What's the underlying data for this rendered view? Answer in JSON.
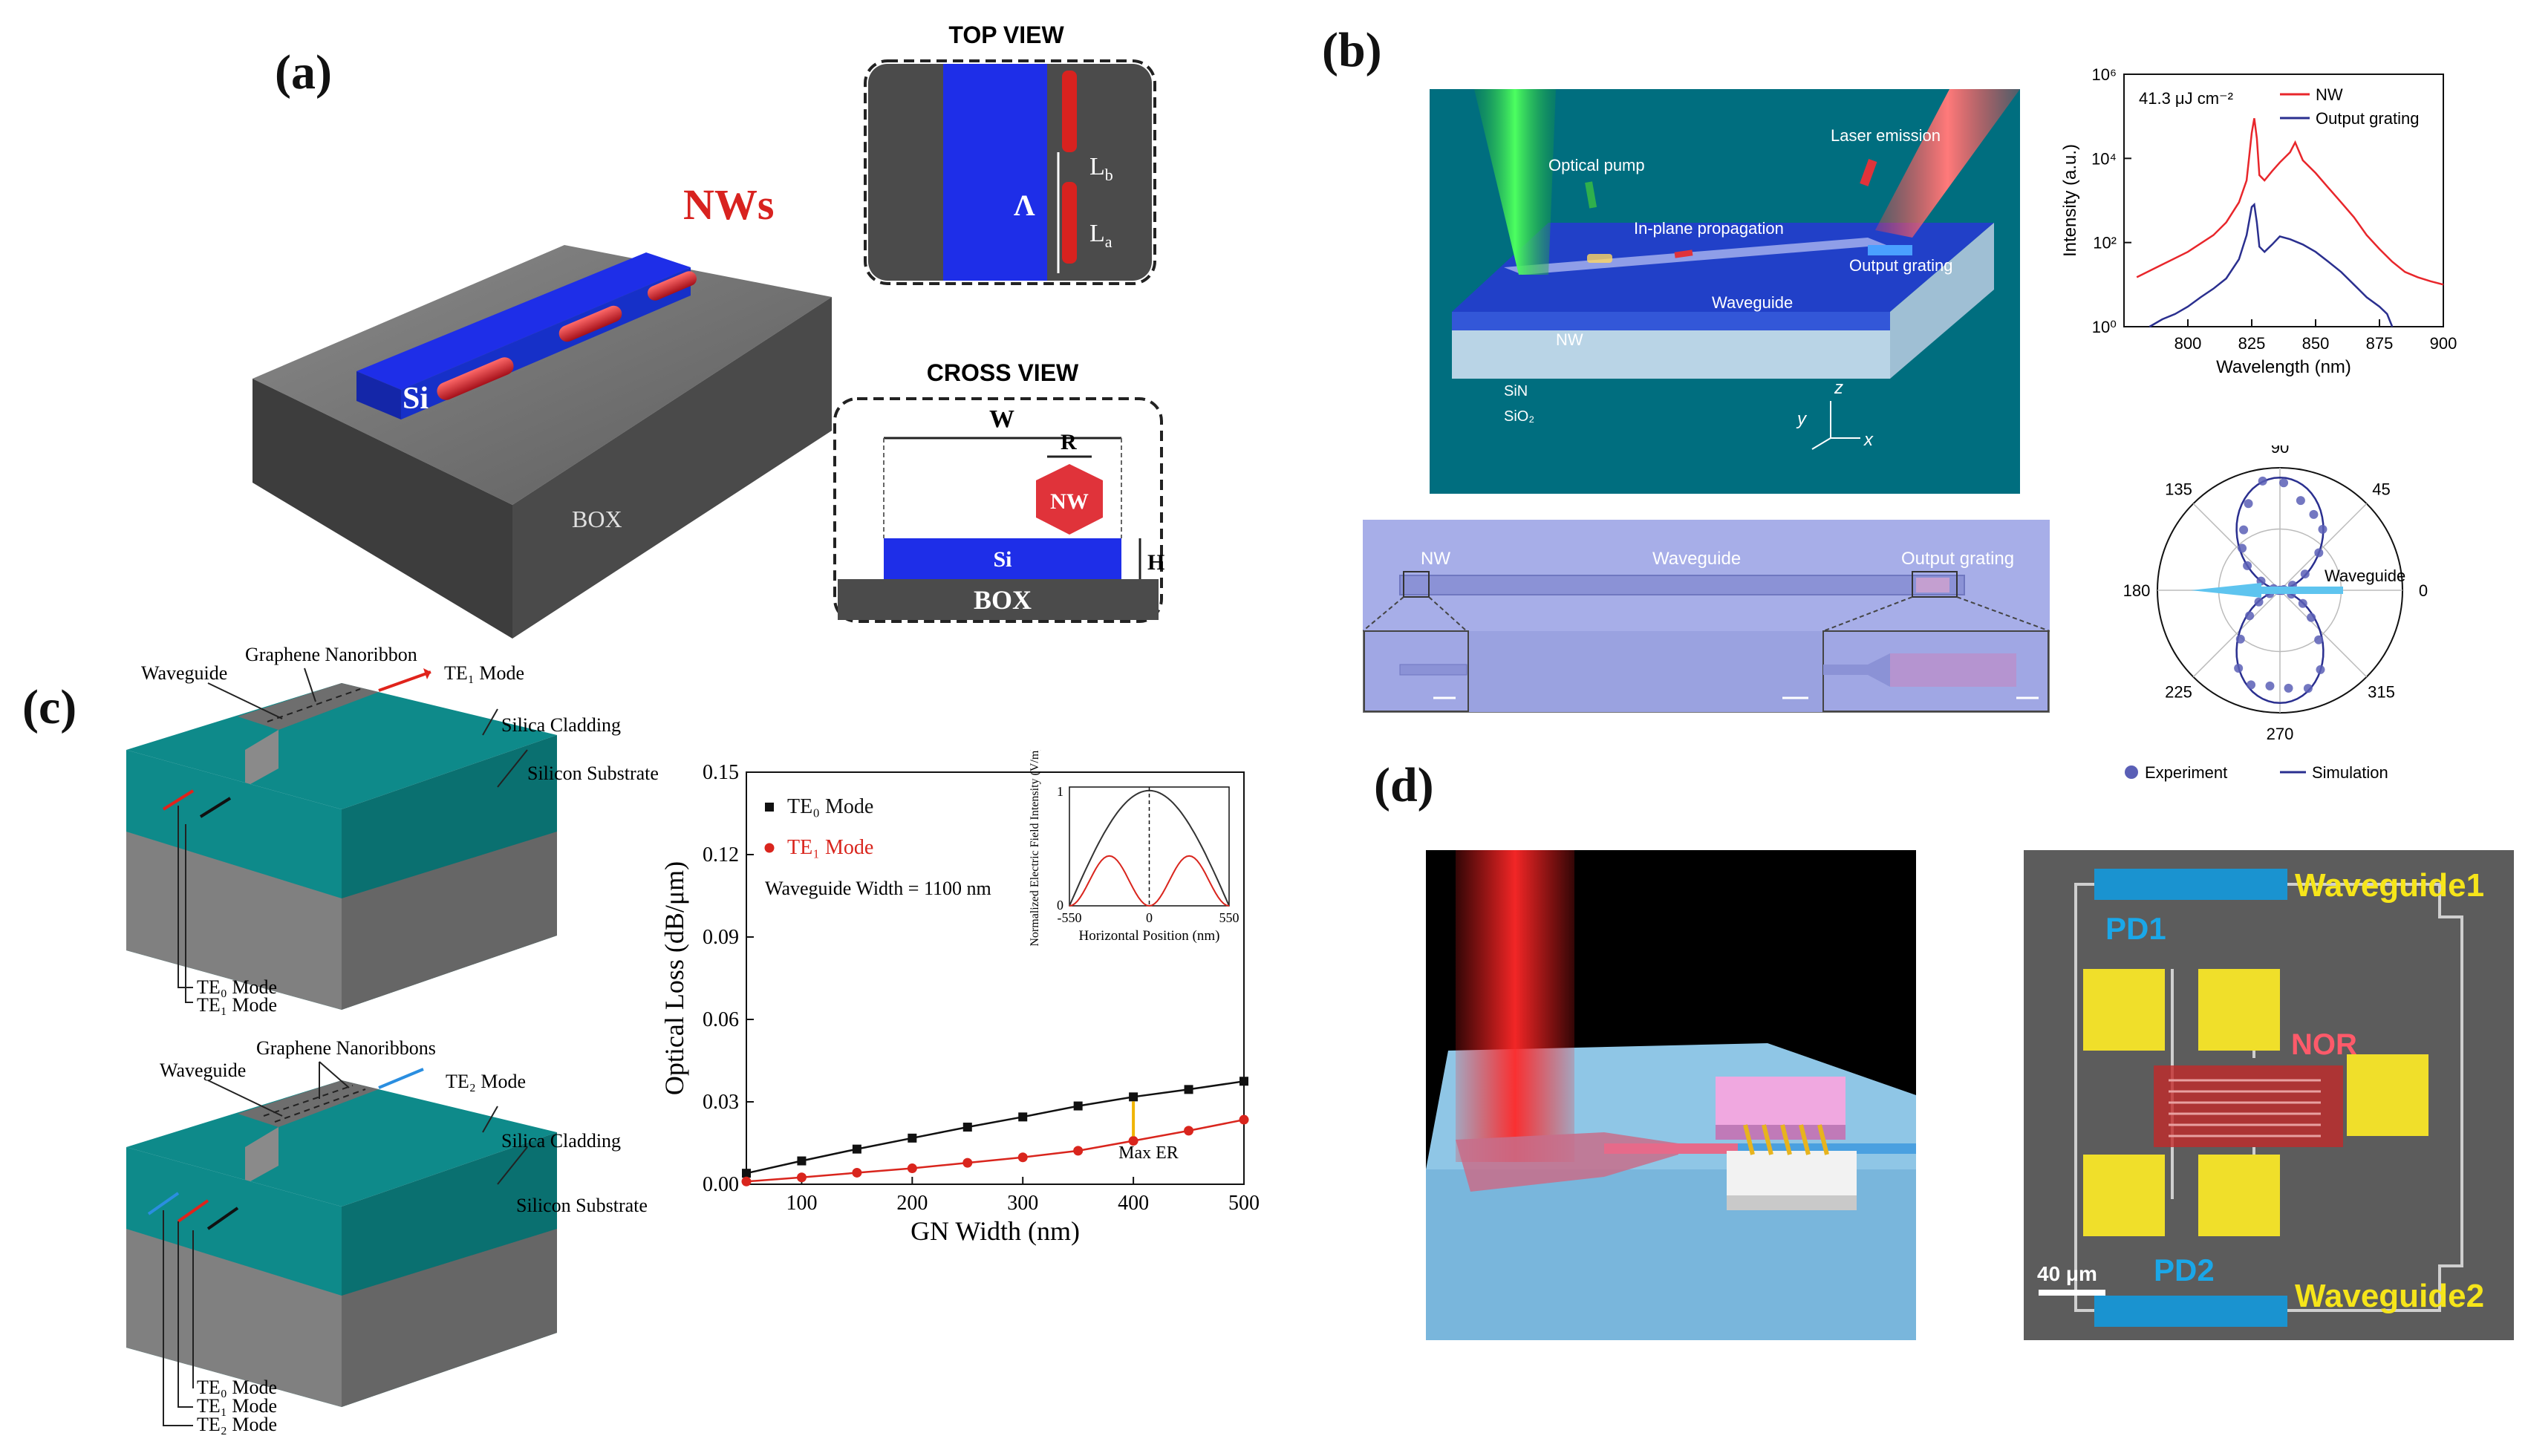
{
  "panels": {
    "a": {
      "label": "(a)",
      "nws_label": "NWs",
      "si_label": "Si",
      "box_label": "BOX",
      "top_view": {
        "title": "TOP VIEW",
        "lambda": "Λ",
        "lb": "L_b",
        "la": "L_a"
      },
      "cross_view": {
        "title": "CROSS VIEW",
        "w": "W",
        "r": "R",
        "nw": "NW",
        "si": "Si",
        "h": "H",
        "box": "BOX"
      }
    },
    "b": {
      "label": "(b)",
      "scene": {
        "optical_pump": "Optical pump",
        "laser_emission": "Laser emission",
        "in_plane": "In-plane propagation",
        "output_grating": "Output grating",
        "waveguide": "Waveguide",
        "nw": "NW",
        "sin": "SiN",
        "sio2": "SiO₂",
        "axis_z": "z",
        "axis_y": "y",
        "axis_x": "x"
      },
      "micrograph": {
        "nw": "NW",
        "waveguide": "Waveguide",
        "output_grating": "Output grating"
      },
      "polar": {
        "angles": [
          "90",
          "45",
          "0",
          "315",
          "270",
          "225",
          "180",
          "135"
        ],
        "waveguide": "Waveguide",
        "legend_experiment": "Experiment",
        "legend_simulation": "Simulation"
      }
    },
    "c": {
      "label": "(c)",
      "top": {
        "waveguide": "Waveguide",
        "nanoribbon": "Graphene Nanoribbon",
        "te1_out": "TE₁ Mode",
        "cladding": "Silica Cladding",
        "substrate": "Silicon Substrate",
        "te0_in": "TE₀ Mode",
        "te1_in": "TE₁ Mode"
      },
      "bottom": {
        "waveguide": "Waveguide",
        "nanoribbons": "Graphene Nanoribbons",
        "te2_out": "TE₂ Mode",
        "cladding": "Silica Cladding",
        "substrate": "Silicon Substrate",
        "te0_in": "TE₀ Mode",
        "te1_in": "TE₁ Mode",
        "te2_in": "TE₂ Mode"
      }
    },
    "d": {
      "label": "(d)",
      "sem": {
        "waveguide1": "Waveguide1",
        "waveguide2": "Waveguide2",
        "pd1": "PD1",
        "pd2": "PD2",
        "nor": "NOR",
        "scale": "40 μm"
      }
    }
  },
  "chart_data": [
    {
      "type": "line",
      "id": "spectrum",
      "annotation": "41.3 μJ cm⁻²",
      "xlabel": "Wavelength (nm)",
      "ylabel": "Intensity (a.u.)",
      "xlim": [
        775,
        900
      ],
      "xticks": [
        "800",
        "825",
        "850",
        "875",
        "900"
      ],
      "yscale": "log",
      "ylim": [
        1,
        1000000
      ],
      "yticks": [
        "10⁰",
        "10²",
        "10⁴",
        "10⁶"
      ],
      "legend_position": "top-right",
      "series": [
        {
          "name": "NW",
          "color": "#e8262b",
          "x": [
            780,
            790,
            800,
            810,
            815,
            820,
            823,
            825,
            826,
            827,
            828,
            830,
            833,
            836,
            840,
            842,
            845,
            850,
            855,
            860,
            865,
            870,
            875,
            880,
            885,
            890,
            895,
            900
          ],
          "y": [
            15,
            30,
            60,
            150,
            300,
            900,
            3000,
            40000,
            90000,
            30000,
            4000,
            3000,
            5000,
            8000,
            14000,
            24000,
            9000,
            4500,
            2000,
            900,
            400,
            150,
            70,
            35,
            20,
            15,
            12,
            10
          ]
        },
        {
          "name": "Output grating",
          "color": "#2a2f8f",
          "x": [
            785,
            790,
            795,
            800,
            805,
            810,
            815,
            820,
            823,
            825,
            826,
            827,
            828,
            830,
            833,
            836,
            840,
            845,
            850,
            855,
            860,
            865,
            870,
            875,
            878,
            880
          ],
          "y": [
            1,
            1.5,
            2,
            3,
            5,
            8,
            14,
            40,
            150,
            700,
            800,
            300,
            80,
            60,
            90,
            140,
            120,
            90,
            60,
            35,
            20,
            10,
            5,
            3,
            2,
            1
          ]
        }
      ]
    },
    {
      "type": "polar",
      "id": "polarization",
      "angle_labels": [
        "0",
        "45",
        "90",
        "135",
        "180",
        "225",
        "270",
        "315"
      ],
      "series": [
        {
          "name": "Experiment",
          "style": "points",
          "color": "#5a5fb6"
        },
        {
          "name": "Simulation",
          "style": "line",
          "color": "#2a2f8f"
        }
      ]
    },
    {
      "type": "line",
      "id": "optical-loss",
      "xlabel": "GN Width (nm)",
      "ylabel": "Optical Loss (dB/μm)",
      "xlim": [
        50,
        500
      ],
      "xticks": [
        "100",
        "200",
        "300",
        "400",
        "500"
      ],
      "ylim": [
        0,
        0.15
      ],
      "yticks": [
        "0.00",
        "0.03",
        "0.06",
        "0.09",
        "0.12",
        "0.15"
      ],
      "annotation_text": "Waveguide Width = 1100 nm",
      "annotation_marker": "Max ER",
      "legend_position": "top-left",
      "series": [
        {
          "name": "TE₀ Mode",
          "color": "#111111",
          "x": [
            50,
            100,
            150,
            200,
            250,
            300,
            350,
            400,
            450,
            500
          ],
          "y": [
            0.004,
            0.0085,
            0.0128,
            0.0168,
            0.0208,
            0.0245,
            0.0285,
            0.0318,
            0.0345,
            0.0375
          ]
        },
        {
          "name": "TE₁ Mode",
          "color": "#d9251d",
          "x": [
            50,
            100,
            150,
            200,
            250,
            300,
            350,
            400,
            450,
            500
          ],
          "y": [
            0.001,
            0.0025,
            0.0042,
            0.0058,
            0.0078,
            0.0098,
            0.0122,
            0.0158,
            0.0195,
            0.0235
          ]
        }
      ],
      "inset": {
        "xlabel": "Horizontal Position (nm)",
        "ylabel": "Normalized Electric Field Intensity (V/m)",
        "xticks": [
          "-550",
          "0",
          "550"
        ],
        "yticks": [
          "0",
          "1"
        ]
      }
    }
  ]
}
